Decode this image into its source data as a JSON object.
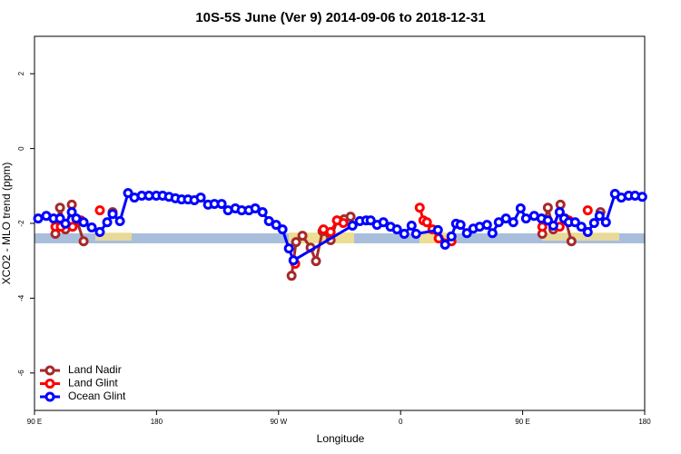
{
  "chart_data": {
    "type": "line",
    "title": "10S-5S June (Ver 9)   2014-09-06 to 2018-12-31",
    "x_label": "Longitude",
    "y_label": "XCO2 - MLO trend (ppm)",
    "xlim": [
      90,
      540
    ],
    "xticks": [
      {
        "value": 90,
        "label": "90 E"
      },
      {
        "value": 180,
        "label": "180"
      },
      {
        "value": 270,
        "label": "90 W"
      },
      {
        "value": 360,
        "label": "0"
      },
      {
        "value": 450,
        "label": "90 E"
      },
      {
        "value": 540,
        "label": "180"
      }
    ],
    "ylim": [
      -7,
      3
    ],
    "yticks": [
      -6,
      -4,
      -2,
      0,
      2
    ],
    "legend": "bottom-left",
    "series": [
      {
        "name": "Land Nadir",
        "color": "#a52a2a",
        "x": [
          105.4,
          108.8,
          112.8,
          117.5,
          126.2,
          null,
          147.6,
          null,
          279.6,
          282.9,
          287.6,
          293.6,
          297.6,
          302.4,
          308.4,
          313.1,
          318.4,
          323.1,
          null,
          464.5,
          468.6,
          472.6,
          477.9,
          481.3,
          486.0,
          null,
          507.4
        ],
        "values": [
          -2.28,
          -1.58,
          -2.16,
          -1.5,
          -2.48,
          null,
          -1.7,
          null,
          -3.4,
          -2.5,
          -2.33,
          -2.65,
          -3.01,
          -2.21,
          -2.45,
          -1.92,
          -1.89,
          -1.82,
          null,
          -2.28,
          -1.58,
          -2.16,
          -1.5,
          -1.87,
          -2.48,
          null,
          -1.7
        ]
      },
      {
        "name": "Land Glint",
        "color": "#ff0000",
        "x": [
          105.4,
          109.4,
          118.1,
          124.2,
          null,
          138.2,
          null,
          282.3,
          null,
          303.1,
          308.4,
          313.1,
          317.8,
          null,
          374.1,
          376.8,
          379.4,
          383.5,
          388.1,
          397.5,
          null,
          464.5,
          468.6,
          477.3,
          484.0,
          null,
          498.0
        ],
        "values": [
          -2.09,
          -2.09,
          -2.09,
          -1.92,
          null,
          -1.65,
          null,
          -3.08,
          null,
          -2.16,
          -2.23,
          -1.92,
          -1.99,
          null,
          -1.58,
          -1.92,
          -1.97,
          -2.16,
          -2.4,
          -2.48,
          null,
          -2.09,
          -1.92,
          -2.09,
          -1.92,
          null,
          -1.65
        ]
      },
      {
        "name": "Ocean Glint",
        "color": "#0000ff",
        "x": [
          92.7,
          98.7,
          104.0,
          108.8,
          112.8,
          117.5,
          120.8,
          126.2,
          132.2,
          138.2,
          143.6,
          147.6,
          153.0,
          159.0,
          163.7,
          169.1,
          174.4,
          179.8,
          184.5,
          189.2,
          193.9,
          198.5,
          203.2,
          207.9,
          212.6,
          218.0,
          222.7,
          228.0,
          232.7,
          238.1,
          242.8,
          248.1,
          252.8,
          258.2,
          262.9,
          268.2,
          272.9,
          277.6,
          281.0,
          324.5,
          329.9,
          334.6,
          337.9,
          342.6,
          347.3,
          352.6,
          357.3,
          362.7,
          368.1,
          371.4,
          387.5,
          392.8,
          397.5,
          400.9,
          404.2,
          408.9,
          413.6,
          418.3,
          423.7,
          427.7,
          432.4,
          437.7,
          443.1,
          448.5,
          452.5,
          458.5,
          463.9,
          468.6,
          472.6,
          477.3,
          480.6,
          484.0,
          488.7,
          493.3,
          498.0,
          502.7,
          506.7,
          511.4,
          518.1,
          522.8,
          528.2,
          532.9,
          538.2
        ],
        "values": [
          -1.87,
          -1.8,
          -1.87,
          -1.87,
          -2.01,
          -1.7,
          -1.87,
          -1.97,
          -2.11,
          -2.23,
          -1.97,
          -1.75,
          -1.94,
          -1.19,
          -1.31,
          -1.26,
          -1.26,
          -1.26,
          -1.26,
          -1.29,
          -1.33,
          -1.36,
          -1.36,
          -1.38,
          -1.31,
          -1.5,
          -1.48,
          -1.48,
          -1.65,
          -1.6,
          -1.65,
          -1.65,
          -1.6,
          -1.7,
          -1.94,
          -2.04,
          -2.16,
          -2.67,
          -2.99,
          -2.06,
          -1.94,
          -1.92,
          -1.92,
          -2.04,
          -1.97,
          -2.09,
          -2.16,
          -2.28,
          -2.06,
          -2.28,
          -2.18,
          -2.57,
          -2.35,
          -2.01,
          -2.04,
          -2.26,
          -2.14,
          -2.09,
          -2.04,
          -2.26,
          -1.97,
          -1.87,
          -1.97,
          -1.6,
          -1.87,
          -1.8,
          -1.87,
          -1.92,
          -2.06,
          -1.7,
          -1.87,
          -1.97,
          -1.97,
          -2.09,
          -2.23,
          -1.99,
          -1.8,
          -1.97,
          -1.21,
          -1.31,
          -1.26,
          -1.26,
          -1.29
        ]
      }
    ]
  }
}
